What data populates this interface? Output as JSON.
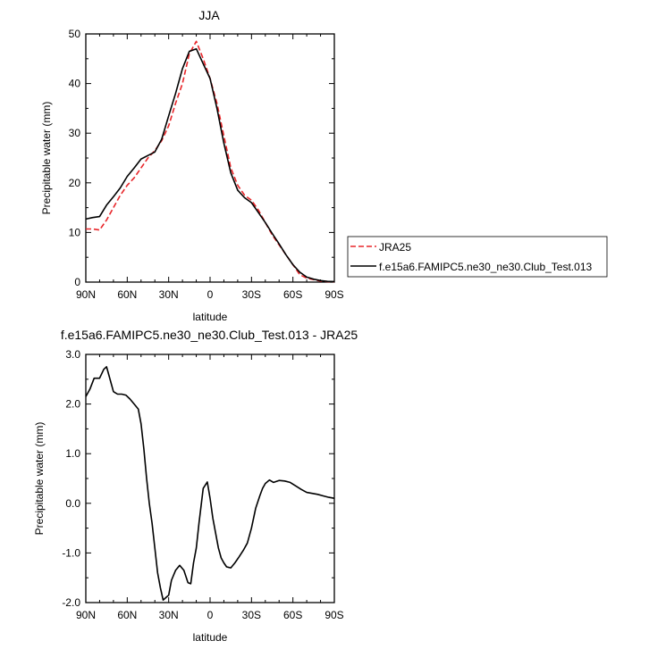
{
  "chart_data": [
    {
      "type": "line",
      "title": "JJA",
      "xlabel": "latitude",
      "ylabel": "Precipitable water (mm)",
      "xlim": [
        90,
        -90
      ],
      "ylim": [
        0,
        50
      ],
      "x_ticks": [
        90,
        60,
        30,
        0,
        -30,
        -60,
        -90
      ],
      "x_tick_labels": [
        "90N",
        "60N",
        "30N",
        "0",
        "30S",
        "60S",
        "90S"
      ],
      "y_ticks": [
        0,
        10,
        20,
        30,
        40,
        50
      ],
      "y_tick_labels": [
        "0",
        "10",
        "20",
        "30",
        "40",
        "50"
      ],
      "legend_position": "right",
      "series": [
        {
          "name": "JRA25",
          "color": "#e8262a",
          "dash": "dashed",
          "x": [
            90,
            85,
            80,
            75,
            70,
            65,
            60,
            55,
            50,
            45,
            40,
            35,
            30,
            25,
            20,
            15,
            10,
            5,
            0,
            -5,
            -10,
            -15,
            -20,
            -25,
            -30,
            -35,
            -40,
            -45,
            -50,
            -55,
            -60,
            -65,
            -70,
            -75,
            -80,
            -85,
            -90
          ],
          "y": [
            10.7,
            10.7,
            10.5,
            12.5,
            15,
            17.5,
            19.5,
            21,
            23,
            25,
            26.5,
            28.5,
            31.5,
            36,
            40,
            46,
            48.5,
            45,
            41,
            36,
            29.5,
            23,
            19.5,
            17.5,
            16.5,
            14.5,
            12,
            9.5,
            7.5,
            5.5,
            3.5,
            1.5,
            0.8,
            0.5,
            0.2,
            0.1,
            0.05
          ]
        },
        {
          "name": "f.e15a6.FAMIPC5.ne30_ne30.Club_Test.013",
          "color": "#000000",
          "dash": "solid",
          "x": [
            90,
            85,
            80,
            75,
            70,
            65,
            60,
            55,
            50,
            45,
            40,
            35,
            30,
            25,
            20,
            15,
            10,
            5,
            0,
            -5,
            -10,
            -15,
            -20,
            -25,
            -30,
            -35,
            -40,
            -45,
            -50,
            -55,
            -60,
            -65,
            -70,
            -75,
            -80,
            -85,
            -90
          ],
          "y": [
            12.7,
            13,
            13.2,
            15.5,
            17.2,
            19,
            21.3,
            23,
            24.8,
            25.5,
            26.2,
            28.8,
            33.5,
            38,
            43,
            46.5,
            47,
            44,
            41,
            35,
            28,
            22,
            18.5,
            17,
            16,
            14,
            12,
            9.8,
            7.7,
            5.5,
            3.5,
            2,
            1,
            0.6,
            0.3,
            0.15,
            0.1
          ]
        }
      ]
    },
    {
      "type": "line",
      "title": "f.e15a6.FAMIPC5.ne30_ne30.Club_Test.013 - JRA25",
      "xlabel": "latitude",
      "ylabel": "Precipitable water (mm)",
      "xlim": [
        90,
        -90
      ],
      "ylim": [
        -2.0,
        3.0
      ],
      "x_ticks": [
        90,
        60,
        30,
        0,
        -30,
        -60,
        -90
      ],
      "x_tick_labels": [
        "90N",
        "60N",
        "30N",
        "0",
        "30S",
        "60S",
        "90S"
      ],
      "y_ticks": [
        -2.0,
        -1.0,
        0.0,
        1.0,
        2.0,
        3.0
      ],
      "y_tick_labels": [
        "-2.0",
        "-1.0",
        "0.0",
        "1.0",
        "2.0",
        "3.0"
      ],
      "series": [
        {
          "color": "#000000",
          "dash": "solid",
          "x": [
            90,
            87,
            84,
            82,
            80,
            77,
            75,
            73,
            70,
            67,
            64,
            61,
            58,
            55,
            52,
            50,
            48,
            46,
            44,
            42,
            40,
            38,
            36,
            34,
            32,
            30,
            28,
            25,
            22,
            19,
            16,
            14,
            12,
            10,
            8,
            5,
            2,
            0,
            -2,
            -4,
            -6,
            -8,
            -10,
            -12,
            -15,
            -18,
            -21,
            -24,
            -27,
            -30,
            -33,
            -36,
            -38,
            -40,
            -43,
            -46,
            -50,
            -54,
            -58,
            -62,
            -66,
            -70,
            -74,
            -78,
            -82,
            -86,
            -90
          ],
          "y": [
            2.15,
            2.3,
            2.52,
            2.52,
            2.52,
            2.7,
            2.75,
            2.55,
            2.25,
            2.2,
            2.2,
            2.18,
            2.1,
            2.0,
            1.9,
            1.6,
            1.1,
            0.5,
            0.0,
            -0.4,
            -0.9,
            -1.4,
            -1.7,
            -1.95,
            -1.9,
            -1.85,
            -1.55,
            -1.35,
            -1.25,
            -1.35,
            -1.6,
            -1.62,
            -1.2,
            -0.9,
            -0.4,
            0.3,
            0.43,
            0.1,
            -0.3,
            -0.6,
            -0.9,
            -1.1,
            -1.2,
            -1.28,
            -1.3,
            -1.2,
            -1.08,
            -0.95,
            -0.8,
            -0.5,
            -0.1,
            0.15,
            0.3,
            0.4,
            0.47,
            0.42,
            0.46,
            0.45,
            0.42,
            0.35,
            0.28,
            0.22,
            0.2,
            0.18,
            0.15,
            0.12,
            0.1
          ]
        }
      ]
    }
  ]
}
